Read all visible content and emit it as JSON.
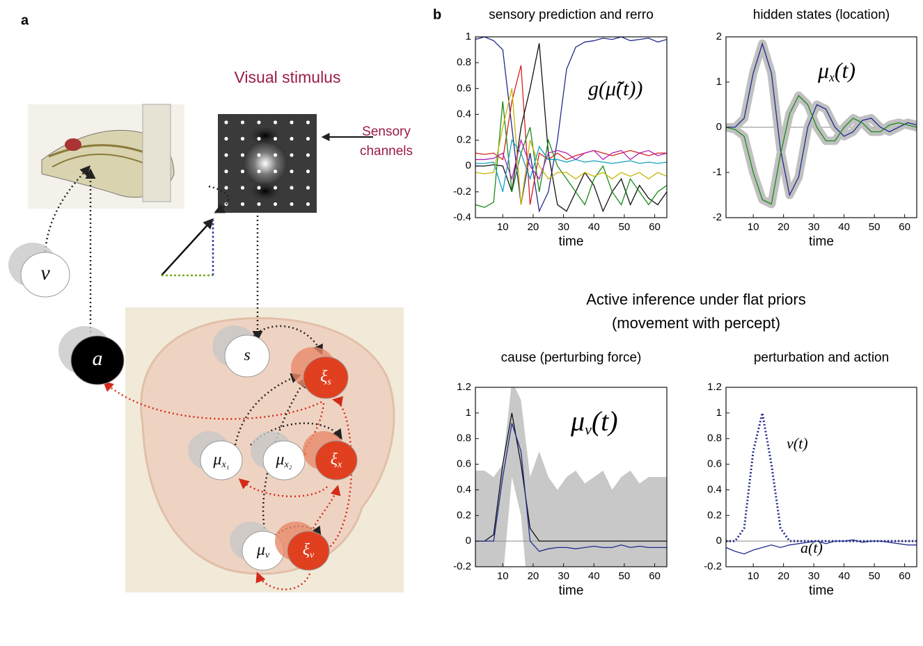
{
  "figure": {
    "panel_a_label": "a",
    "panel_b_label": "b",
    "stimulus_title": "Visual stimulus",
    "sensory_label": [
      "Sensory",
      "channels"
    ],
    "heading": [
      "Active inference under flat priors",
      "(movement with percept)"
    ],
    "nodes": [
      {
        "label": "v",
        "sub": ""
      },
      {
        "label": "a",
        "sub": ""
      },
      {
        "label": "s",
        "sub": ""
      },
      {
        "label": "ξ",
        "sub": "s"
      },
      {
        "label": "μ",
        "sub": "x₁"
      },
      {
        "label": "μ",
        "sub": "x₂"
      },
      {
        "label": "ξ",
        "sub": "x"
      },
      {
        "label": "μ",
        "sub": "v"
      },
      {
        "label": "ξ",
        "sub": "v"
      }
    ]
  },
  "chart_data": [
    {
      "type": "line",
      "title": "sensory prediction and rerro",
      "x_label": "time",
      "annotations": [
        [
          "g(μ̃(t))"
        ]
      ],
      "x": [
        1,
        4,
        7,
        10,
        13,
        16,
        19,
        22,
        25,
        28,
        31,
        34,
        37,
        40,
        43,
        46,
        49,
        52,
        55,
        58,
        61,
        64
      ],
      "xlim": [
        1,
        64
      ],
      "xticks": [
        10,
        20,
        30,
        40,
        50,
        60
      ],
      "ylim": [
        -0.4,
        1
      ],
      "yticks": [
        -0.4,
        -0.2,
        0,
        0.2,
        0.4,
        0.6,
        0.8,
        1
      ],
      "zero_line": false,
      "series": [
        {
          "color": "#1f2a8c",
          "values": [
            0.98,
            1,
            0.97,
            0.9,
            0.3,
            -0.3,
            0.1,
            -0.35,
            -0.2,
            0.2,
            0.75,
            0.92,
            0.96,
            0.97,
            0.99,
            0.98,
            1,
            0.97,
            0.98,
            0.99,
            0.96,
            0.98
          ]
        },
        {
          "color": "#d62020",
          "values": [
            0.1,
            0.09,
            0.1,
            0.05,
            0.5,
            0.78,
            -0.3,
            0.1,
            0.05,
            0.1,
            0.05,
            0.08,
            0.1,
            0.12,
            0.1,
            0.08,
            0.1,
            0.12,
            0.1,
            0.08,
            0.1,
            0.1
          ]
        },
        {
          "color": "#111111",
          "values": [
            0,
            0,
            0.01,
            0,
            -0.2,
            0.3,
            0.6,
            0.95,
            0.1,
            -0.3,
            -0.35,
            -0.2,
            -0.05,
            -0.15,
            -0.35,
            -0.2,
            -0.1,
            -0.3,
            -0.15,
            -0.25,
            -0.3,
            -0.2
          ]
        },
        {
          "color": "#1a8a1a",
          "values": [
            -0.3,
            -0.32,
            -0.28,
            0.5,
            -0.2,
            0.1,
            0.3,
            -0.2,
            0.2,
            0,
            -0.1,
            -0.2,
            -0.3,
            -0.1,
            0,
            -0.2,
            -0.3,
            -0.1,
            -0.2,
            -0.3,
            -0.2,
            -0.15
          ]
        },
        {
          "color": "#c8b400",
          "values": [
            -0.05,
            -0.06,
            -0.05,
            0.3,
            0.6,
            -0.3,
            0.2,
            0,
            -0.1,
            -0.05,
            -0.05,
            -0.1,
            -0.05,
            -0.08,
            -0.05,
            -0.1,
            -0.05,
            -0.08,
            -0.05,
            -0.1,
            -0.05,
            -0.08
          ]
        },
        {
          "color": "#10a0c0",
          "values": [
            0.02,
            0.02,
            0.03,
            -0.2,
            0.2,
            0.1,
            -0.1,
            0.15,
            0.05,
            0.05,
            0.03,
            0.05,
            0.03,
            0.04,
            0.03,
            0.02,
            0.03,
            0.04,
            0.02,
            0.03,
            0.02,
            0.03
          ]
        },
        {
          "color": "#b020b0",
          "values": [
            0.05,
            0.05,
            0.06,
            0.1,
            -0.1,
            0.2,
            0,
            -0.1,
            0.1,
            0.12,
            0.1,
            0.05,
            0.1,
            0.12,
            0.05,
            0.1,
            0.12,
            0.05,
            0.1,
            0.12,
            0.08,
            0.1
          ]
        }
      ]
    },
    {
      "type": "line",
      "title": "hidden states (location)",
      "x_label": "time",
      "annotations": [
        [
          "μ",
          "x",
          "(t)"
        ]
      ],
      "x": [
        1,
        4,
        7,
        10,
        13,
        16,
        19,
        22,
        25,
        28,
        31,
        34,
        37,
        40,
        43,
        46,
        49,
        52,
        55,
        58,
        61,
        64
      ],
      "xlim": [
        1,
        64
      ],
      "xticks": [
        10,
        20,
        30,
        40,
        50,
        60
      ],
      "ylim": [
        -2,
        2
      ],
      "yticks": [
        -2,
        -1,
        0,
        1,
        2
      ],
      "zero_line": true,
      "series": [
        {
          "color": "#1f2a8c",
          "shade": true,
          "values": [
            0,
            0,
            0.2,
            1.2,
            1.85,
            1.2,
            -0.5,
            -1.5,
            -1.1,
            0,
            0.5,
            0.4,
            0,
            -0.2,
            -0.1,
            0.15,
            0.2,
            0,
            -0.1,
            0,
            0.1,
            0.05
          ]
        },
        {
          "color": "#1a8a1a",
          "shade": true,
          "values": [
            0,
            -0.05,
            -0.2,
            -1,
            -1.6,
            -1.7,
            -0.6,
            0.3,
            0.7,
            0.5,
            0,
            -0.3,
            -0.3,
            0,
            0.2,
            0.1,
            -0.1,
            -0.1,
            0.05,
            0.1,
            0.05,
            0
          ]
        }
      ]
    },
    {
      "type": "line",
      "title": "cause (perturbing force)",
      "x_label": "time",
      "annotations": [
        [
          "μ",
          "v",
          "(t)"
        ]
      ],
      "x": [
        1,
        4,
        7,
        10,
        13,
        16,
        19,
        22,
        25,
        28,
        31,
        34,
        37,
        40,
        43,
        46,
        49,
        52,
        55,
        58,
        61,
        64
      ],
      "xlim": [
        1,
        64
      ],
      "xticks": [
        10,
        20,
        30,
        40,
        50,
        60
      ],
      "ylim": [
        -0.2,
        1.2
      ],
      "yticks": [
        -0.2,
        0,
        0.2,
        0.4,
        0.6,
        0.8,
        1,
        1.2
      ],
      "zero_line": true,
      "band": {
        "color": "#c8c8c8",
        "upper": [
          0.55,
          0.55,
          0.5,
          0.6,
          1.25,
          1.1,
          0.5,
          0.7,
          0.5,
          0.4,
          0.5,
          0.55,
          0.45,
          0.5,
          0.55,
          0.4,
          0.5,
          0.55,
          0.45,
          0.5,
          0.5,
          0.5
        ],
        "lower": [
          -0.3,
          -0.4,
          -0.5,
          -0.3,
          0.5,
          0.2,
          -0.6,
          -0.9,
          -0.7,
          -0.8,
          -0.6,
          -0.7,
          -0.8,
          -0.6,
          -0.7,
          -0.8,
          -0.6,
          -0.7,
          -0.8,
          -0.6,
          -0.7,
          -0.8
        ]
      },
      "series": [
        {
          "color": "#111111",
          "values": [
            0,
            0,
            0.05,
            0.6,
            1,
            0.6,
            0.1,
            0,
            0,
            0,
            0,
            0,
            0,
            0,
            0,
            0,
            0,
            0,
            0,
            0,
            0,
            0
          ]
        },
        {
          "color": "#1f2a8c",
          "values": [
            0,
            0,
            0,
            0.5,
            0.92,
            0.7,
            0,
            -0.08,
            -0.06,
            -0.05,
            -0.05,
            -0.06,
            -0.05,
            -0.04,
            -0.05,
            -0.05,
            -0.03,
            -0.05,
            -0.04,
            -0.05,
            -0.05,
            -0.05
          ]
        }
      ]
    },
    {
      "type": "line",
      "title": "perturbation and action",
      "x_label": "time",
      "annotations": [
        [
          "v(t)"
        ],
        [
          "a(t)"
        ]
      ],
      "x": [
        1,
        4,
        7,
        10,
        13,
        16,
        19,
        22,
        25,
        28,
        31,
        34,
        37,
        40,
        43,
        46,
        49,
        52,
        55,
        58,
        61,
        64
      ],
      "xlim": [
        1,
        64
      ],
      "xticks": [
        10,
        20,
        30,
        40,
        50,
        60
      ],
      "ylim": [
        -0.2,
        1.2
      ],
      "yticks": [
        -0.2,
        0,
        0.2,
        0.4,
        0.6,
        0.8,
        1,
        1.2
      ],
      "zero_line": true,
      "series": [
        {
          "color": "#1f2a8c",
          "dash": true,
          "values": [
            0,
            0,
            0.1,
            0.7,
            1,
            0.6,
            0.1,
            0,
            0,
            0,
            0,
            0,
            0,
            0,
            0,
            0,
            0,
            0,
            0,
            0,
            0,
            0
          ]
        },
        {
          "color": "#1f2a8c",
          "values": [
            -0.05,
            -0.08,
            -0.1,
            -0.07,
            -0.05,
            -0.03,
            -0.05,
            -0.03,
            -0.02,
            -0.01,
            0,
            -0.02,
            0,
            0,
            0.01,
            -0.01,
            0,
            0,
            -0.01,
            -0.02,
            -0.03,
            -0.03
          ]
        }
      ]
    }
  ]
}
